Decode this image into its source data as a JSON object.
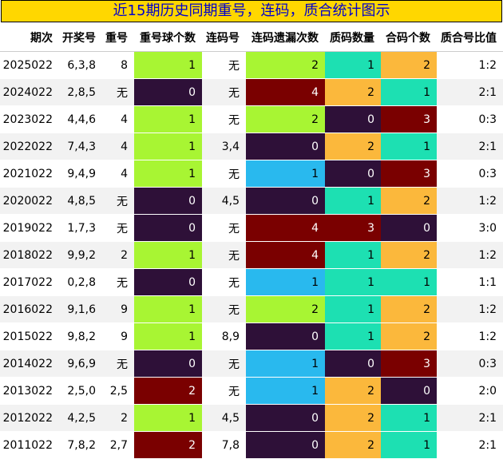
{
  "title": "近15期历史同期重号，连码，质合统计图示",
  "colors": {
    "purple": "#2e1038",
    "green": "#a8f533",
    "maroon": "#7a0000",
    "blue": "#29b9ee",
    "teal": "#1de0b2",
    "orange": "#fbb83c"
  },
  "chart_data": {
    "type": "table",
    "columns": [
      "期次",
      "开奖号",
      "重号",
      "重号球个数",
      "连码号",
      "连码遗漏次数",
      "质码数量",
      "合码个数",
      "质合号比值"
    ],
    "rows": [
      {
        "period": "2025022",
        "numbers": "6,3,8",
        "repeat": "8",
        "repeat_count": 1,
        "consec": "无",
        "consec_miss": 2,
        "prime_count": 1,
        "composite_count": 2,
        "ratio": "1:2"
      },
      {
        "period": "2024022",
        "numbers": "2,8,5",
        "repeat": "无",
        "repeat_count": 0,
        "consec": "无",
        "consec_miss": 4,
        "prime_count": 2,
        "composite_count": 1,
        "ratio": "2:1"
      },
      {
        "period": "2023022",
        "numbers": "4,4,6",
        "repeat": "4",
        "repeat_count": 1,
        "consec": "无",
        "consec_miss": 2,
        "prime_count": 0,
        "composite_count": 3,
        "ratio": "0:3"
      },
      {
        "period": "2022022",
        "numbers": "7,4,3",
        "repeat": "4",
        "repeat_count": 1,
        "consec": "3,4",
        "consec_miss": 0,
        "prime_count": 2,
        "composite_count": 1,
        "ratio": "2:1"
      },
      {
        "period": "2021022",
        "numbers": "9,4,9",
        "repeat": "4",
        "repeat_count": 1,
        "consec": "无",
        "consec_miss": 1,
        "prime_count": 0,
        "composite_count": 3,
        "ratio": "0:3"
      },
      {
        "period": "2020022",
        "numbers": "4,8,5",
        "repeat": "无",
        "repeat_count": 0,
        "consec": "4,5",
        "consec_miss": 0,
        "prime_count": 1,
        "composite_count": 2,
        "ratio": "1:2"
      },
      {
        "period": "2019022",
        "numbers": "1,7,3",
        "repeat": "无",
        "repeat_count": 0,
        "consec": "无",
        "consec_miss": 4,
        "prime_count": 3,
        "composite_count": 0,
        "ratio": "3:0"
      },
      {
        "period": "2018022",
        "numbers": "9,9,2",
        "repeat": "2",
        "repeat_count": 1,
        "consec": "无",
        "consec_miss": 4,
        "prime_count": 1,
        "composite_count": 2,
        "ratio": "1:2"
      },
      {
        "period": "2017022",
        "numbers": "0,2,8",
        "repeat": "无",
        "repeat_count": 0,
        "consec": "无",
        "consec_miss": 1,
        "prime_count": 1,
        "composite_count": 1,
        "ratio": "1:1"
      },
      {
        "period": "2016022",
        "numbers": "9,1,6",
        "repeat": "9",
        "repeat_count": 1,
        "consec": "无",
        "consec_miss": 2,
        "prime_count": 1,
        "composite_count": 2,
        "ratio": "1:2"
      },
      {
        "period": "2015022",
        "numbers": "9,8,2",
        "repeat": "9",
        "repeat_count": 1,
        "consec": "8,9",
        "consec_miss": 0,
        "prime_count": 1,
        "composite_count": 2,
        "ratio": "1:2"
      },
      {
        "period": "2014022",
        "numbers": "9,6,9",
        "repeat": "无",
        "repeat_count": 0,
        "consec": "无",
        "consec_miss": 1,
        "prime_count": 0,
        "composite_count": 3,
        "ratio": "0:3"
      },
      {
        "period": "2013022",
        "numbers": "2,5,0",
        "repeat": "2,5",
        "repeat_count": 2,
        "consec": "无",
        "consec_miss": 1,
        "prime_count": 2,
        "composite_count": 0,
        "ratio": "2:0"
      },
      {
        "period": "2012022",
        "numbers": "4,2,5",
        "repeat": "2",
        "repeat_count": 1,
        "consec": "4,5",
        "consec_miss": 0,
        "prime_count": 2,
        "composite_count": 1,
        "ratio": "2:1"
      },
      {
        "period": "2011022",
        "numbers": "7,8,2",
        "repeat": "2,7",
        "repeat_count": 2,
        "consec": "7,8",
        "consec_miss": 0,
        "prime_count": 2,
        "composite_count": 1,
        "ratio": "2:1"
      }
    ]
  }
}
